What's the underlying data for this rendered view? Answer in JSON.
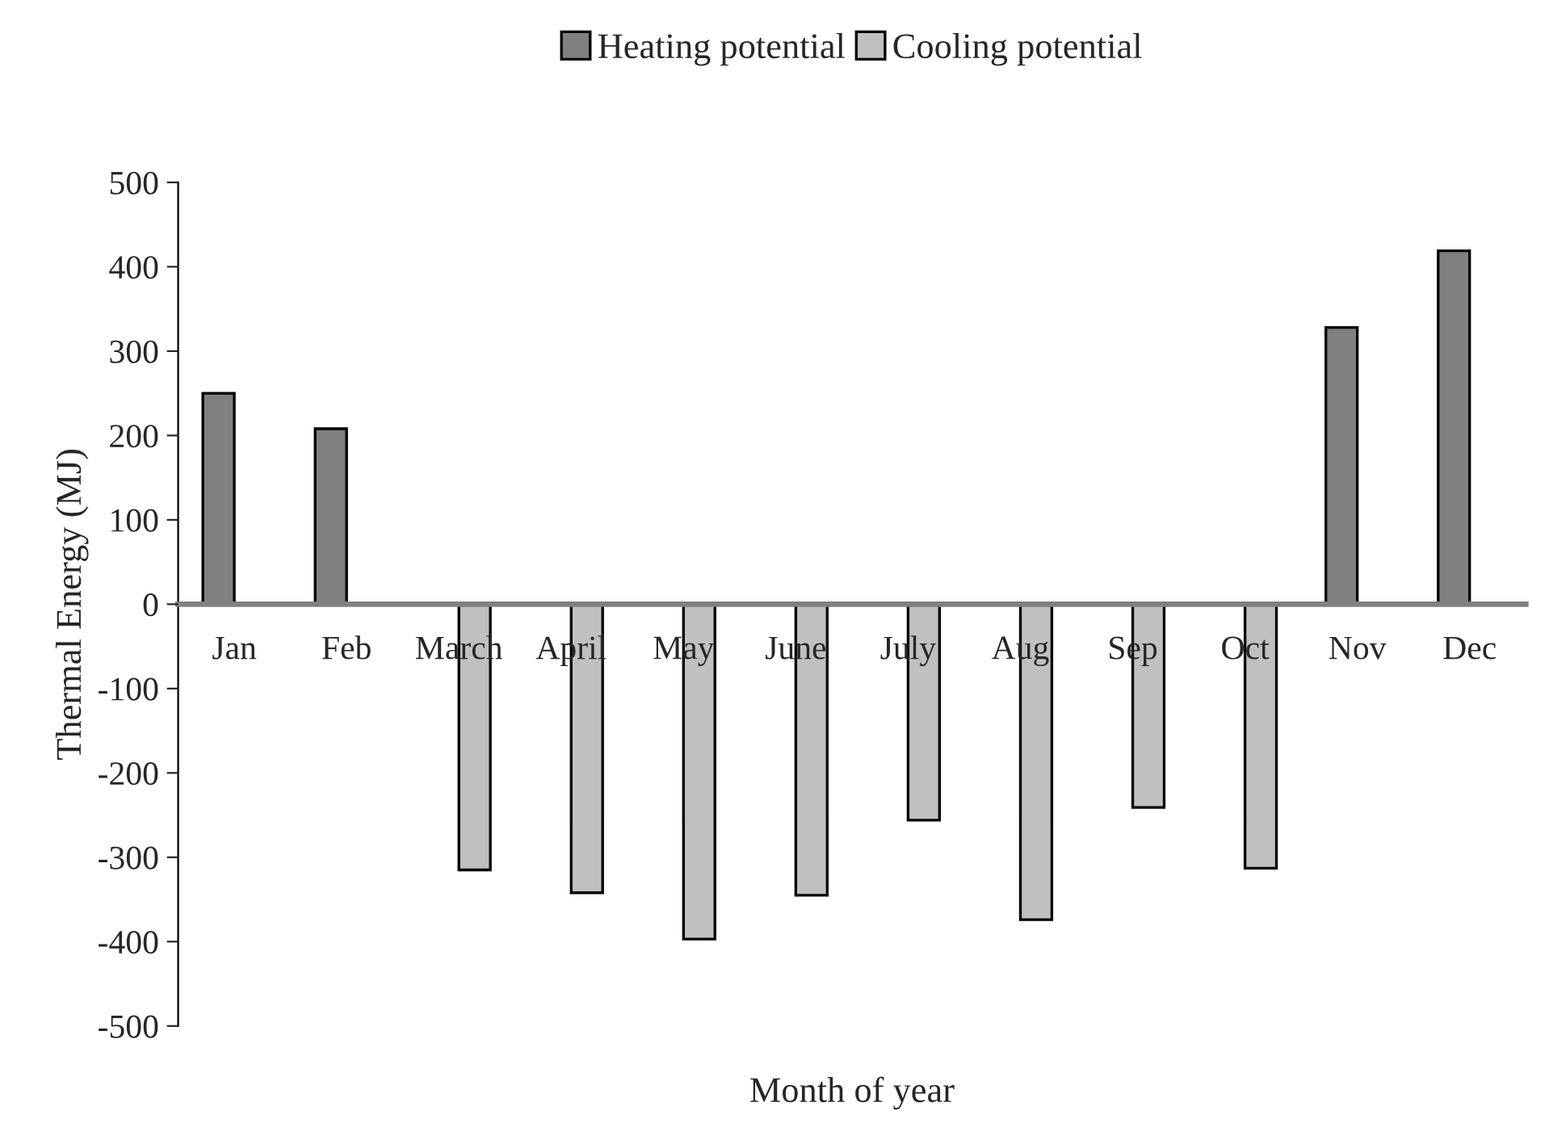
{
  "chart_data": {
    "type": "bar",
    "xlabel": "Month of year",
    "ylabel": "Thermal Energy (MJ)",
    "categories": [
      "Jan",
      "Feb",
      "March",
      "April",
      "May",
      "June",
      "July",
      "Aug",
      "Sep",
      "Oct",
      "Nov",
      "Dec"
    ],
    "series": [
      {
        "name": "Heating potential",
        "color": "#808080",
        "values": [
          250,
          208,
          null,
          null,
          null,
          null,
          null,
          null,
          null,
          null,
          328,
          419
        ]
      },
      {
        "name": "Cooling potential",
        "color": "#c0c0c0",
        "values": [
          null,
          null,
          -315,
          -342,
          -397,
          -345,
          -256,
          -374,
          -241,
          -313,
          null,
          null
        ]
      }
    ],
    "ylim": [
      -500,
      500
    ],
    "yticks": [
      -500,
      -400,
      -300,
      -200,
      -100,
      0,
      100,
      200,
      300,
      400,
      500
    ],
    "grid": false,
    "legend": "top"
  }
}
